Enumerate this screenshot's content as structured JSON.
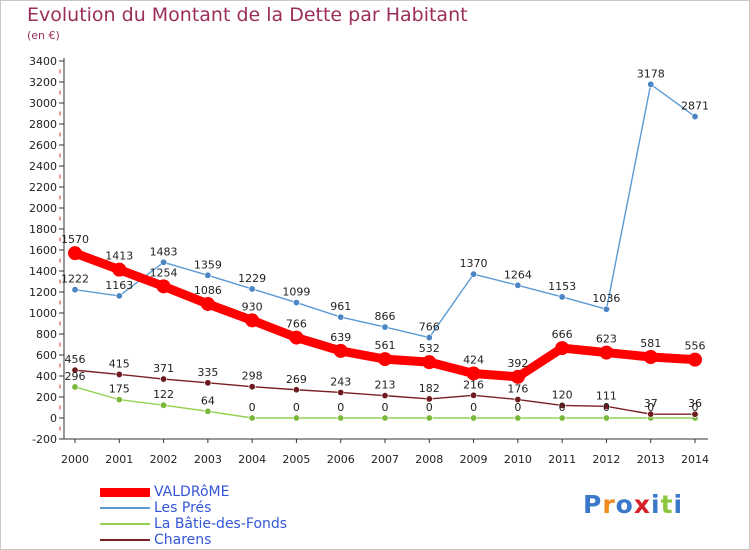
{
  "title": "Evolution du Montant de la Dette par Habitant",
  "subtitle": "(en €)",
  "logo": {
    "text": "Proxiti",
    "colors": [
      "#3a78c9",
      "#f08a1c",
      "#3a78c9",
      "#d61f26",
      "#3a78c9",
      "#8dc63f",
      "#3a78c9"
    ]
  },
  "chart_data": {
    "type": "line",
    "x": [
      "2000",
      "2001",
      "2002",
      "2003",
      "2004",
      "2005",
      "2006",
      "2007",
      "2008",
      "2009",
      "2010",
      "2011",
      "2012",
      "2013",
      "2014"
    ],
    "ylim": [
      -200,
      3400
    ],
    "yticks": [
      -200,
      0,
      200,
      400,
      600,
      800,
      1000,
      1200,
      1400,
      1600,
      1800,
      2000,
      2200,
      2400,
      2600,
      2800,
      3000,
      3200,
      3400
    ],
    "grid": false,
    "legend_position": "bottom-left",
    "series": [
      {
        "name": "Les Prés",
        "color": "#5b9bd5",
        "marker": "#4a86c4",
        "values": [
          1222,
          1163,
          1483,
          1359,
          1229,
          1099,
          961,
          866,
          766,
          1370,
          1264,
          1153,
          1036,
          3178,
          2871
        ]
      },
      {
        "name": "La Bâtie-des-Fonds",
        "color": "#92d050",
        "marker": "#7ab83c",
        "values": [
          296,
          175,
          122,
          64,
          0,
          0,
          0,
          0,
          0,
          0,
          0,
          0,
          0,
          0,
          0
        ]
      },
      {
        "name": "Charens",
        "color": "#7a1f24",
        "marker": "#6e1a1f",
        "values": [
          456,
          415,
          371,
          335,
          298,
          269,
          243,
          213,
          182,
          216,
          176,
          120,
          111,
          37,
          36
        ]
      },
      {
        "name": "VALDRôME",
        "color": "#ff0000",
        "marker": "#ff0000",
        "values": [
          1570,
          1413,
          1254,
          1086,
          930,
          766,
          639,
          561,
          532,
          424,
          392,
          666,
          623,
          581,
          556
        ]
      }
    ],
    "data_labels": {
      "Les Prés": [
        "1222",
        "1163",
        "1483",
        "1359",
        "1229",
        "1099",
        "961",
        "866",
        "766",
        "1370",
        "1264",
        "1153",
        "1036",
        "3178",
        "2871"
      ],
      "La Bâtie-des-Fonds": [
        "296",
        "175",
        "122",
        "64",
        "0",
        "0",
        "0",
        "0",
        "0",
        "0",
        "0",
        "0",
        "0",
        "0",
        "0"
      ],
      "Charens": [
        "456",
        "415",
        "371",
        "335",
        "298",
        "269",
        "243",
        "213",
        "182",
        "216",
        "176",
        "120",
        "111",
        "37",
        "36"
      ],
      "VALDRôME": [
        "1570",
        "1413",
        "1254",
        "1086",
        "930",
        "766",
        "639",
        "561",
        "532",
        "424",
        "392",
        "666",
        "623",
        "581",
        "556"
      ]
    }
  },
  "legend": [
    {
      "label": "VALDRôME",
      "color": "#ff0000",
      "thick": true
    },
    {
      "label": "Les Prés",
      "color": "#5b9bd5",
      "thick": false
    },
    {
      "label": "La Bâtie-des-Fonds",
      "color": "#92d050",
      "thick": false
    },
    {
      "label": "Charens",
      "color": "#7a1f24",
      "thick": false
    }
  ]
}
